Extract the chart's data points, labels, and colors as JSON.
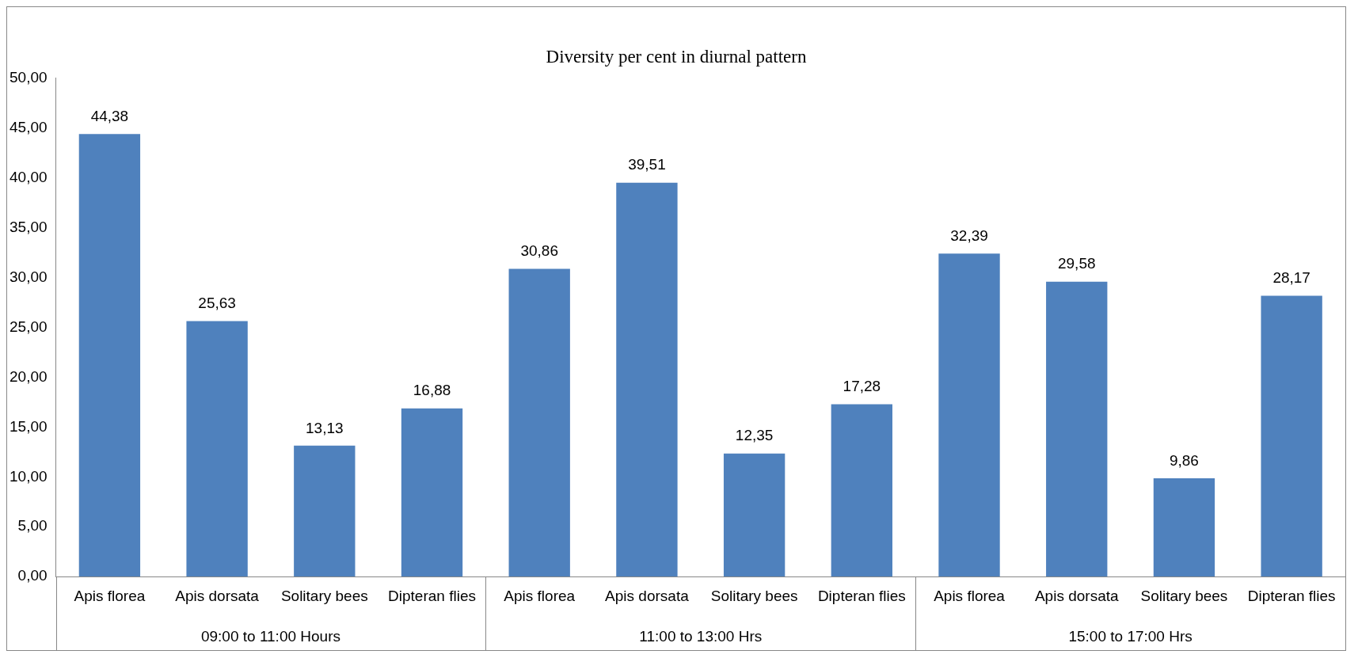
{
  "chart_data": {
    "type": "bar",
    "title": "Diversity per cent in diurnal pattern",
    "categories": [
      "Apis florea",
      "Apis dorsata",
      "Solitary bees",
      "Dipteran flies",
      "Apis florea",
      "Apis dorsata",
      "Solitary bees",
      "Dipteran flies",
      "Apis florea",
      "Apis dorsata",
      "Solitary bees",
      "Dipteran flies"
    ],
    "values": [
      44.38,
      25.63,
      13.13,
      16.88,
      30.86,
      39.51,
      12.35,
      17.28,
      32.39,
      29.58,
      9.86,
      28.17
    ],
    "value_labels": [
      "44,38",
      "25,63",
      "13,13",
      "16,88",
      "30,86",
      "39,51",
      "12,35",
      "17,28",
      "32,39",
      "29,58",
      "9,86",
      "28,17"
    ],
    "color": "#4f81bd",
    "ylim": [
      0,
      50
    ],
    "yticks": [
      {
        "value": 0,
        "label": "0,00"
      },
      {
        "value": 5,
        "label": "5,00"
      },
      {
        "value": 10,
        "label": "10,00"
      },
      {
        "value": 15,
        "label": "15,00"
      },
      {
        "value": 20,
        "label": "20,00"
      },
      {
        "value": 25,
        "label": "25,00"
      },
      {
        "value": 30,
        "label": "30,00"
      },
      {
        "value": 35,
        "label": "35,00"
      },
      {
        "value": 40,
        "label": "40,00"
      },
      {
        "value": 45,
        "label": "45,00"
      },
      {
        "value": 50,
        "label": "50,00"
      }
    ],
    "annotations": [
      "09:00 to 11:00 Hours",
      "11:00 to 13:00 Hrs",
      "15:00 to 17:00 Hrs"
    ],
    "grid": false,
    "legend": false
  }
}
